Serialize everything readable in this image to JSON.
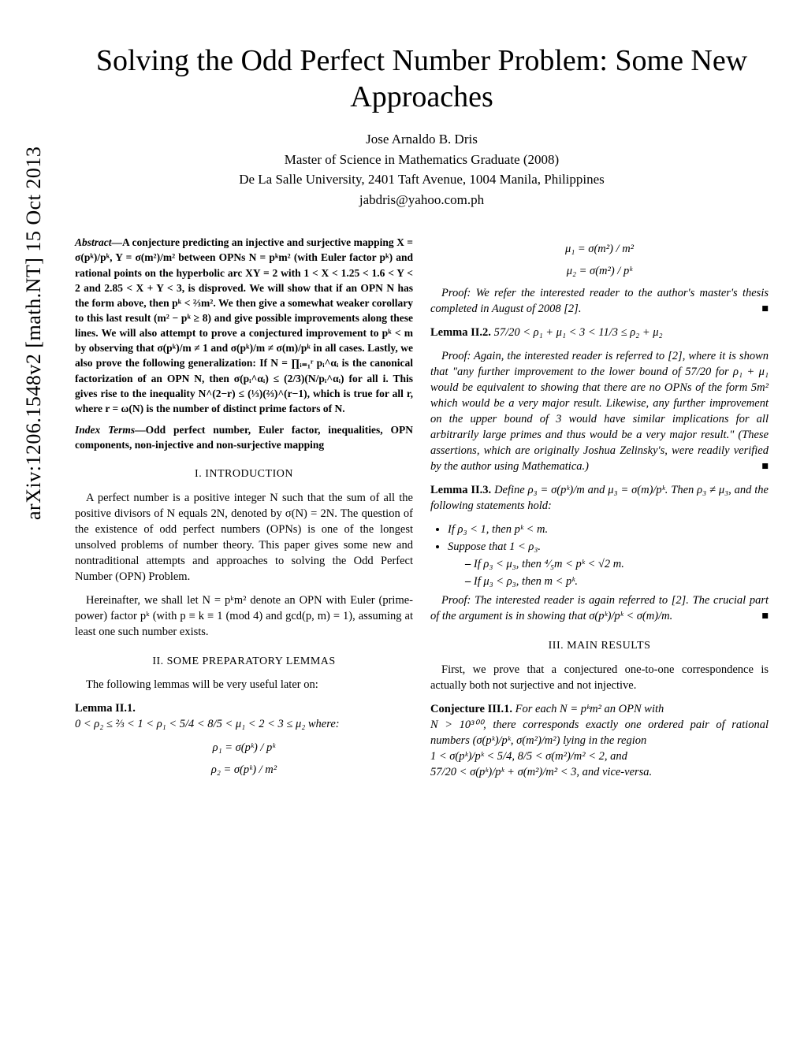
{
  "arxiv_id": "arXiv:1206.1548v2  [math.NT]  15 Oct 2013",
  "title": "Solving the Odd Perfect Number Problem: Some New Approaches",
  "author": "Jose Arnaldo B. Dris",
  "affil1": "Master of Science in Mathematics Graduate (2008)",
  "affil2": "De La Salle University, 2401 Taft Avenue, 1004 Manila, Philippines",
  "email": "jabdris@yahoo.com.ph",
  "abstract_label": "Abstract",
  "abstract_body": "—A conjecture predicting an injective and surjective mapping X = σ(pᵏ)/pᵏ, Y = σ(m²)/m² between OPNs N = pᵏm² (with Euler factor pᵏ) and rational points on the hyperbolic arc XY = 2 with 1 < X < 1.25 < 1.6 < Y < 2 and 2.85 < X + Y < 3, is disproved. We will show that if an OPN N has the form above, then pᵏ < ⅔m². We then give a somewhat weaker corollary to this last result (m² − pᵏ ≥ 8) and give possible improvements along these lines. We will also attempt to prove a conjectured improvement to pᵏ < m by observing that σ(pᵏ)/m ≠ 1 and σ(pᵏ)/m ≠ σ(m)/pᵏ in all cases. Lastly, we also prove the following generalization: If N = ∏ᵢ₌₁ʳ pᵢ^αᵢ is the canonical factorization of an OPN N, then σ(pᵢ^αᵢ) ≤ (2/3)(N/pᵢ^αᵢ) for all i. This gives rise to the inequality N^(2−r) ≤ (⅓)(⅔)^(r−1), which is true for all r, where r = ω(N) is the number of distinct prime factors of N.",
  "index_label": "Index Terms",
  "index_body": "—Odd perfect number, Euler factor, inequalities, OPN components, non-injective and non-surjective mapping",
  "sec1_head": "I.  INTRODUCTION",
  "sec1_p1": "A perfect number is a positive integer N such that the sum of all the positive divisors of N equals 2N, denoted by σ(N) = 2N. The question of the existence of odd perfect numbers (OPNs) is one of the longest unsolved problems of number theory. This paper gives some new and nontraditional attempts and approaches to solving the Odd Perfect Number (OPN) Problem.",
  "sec1_p2": "Hereinafter, we shall let N = pᵏm² denote an OPN with Euler (prime-power) factor pᵏ (with p ≡ k ≡ 1 (mod 4) and gcd(p, m) = 1), assuming at least one such number exists.",
  "sec2_head": "II.  SOME PREPARATORY LEMMAS",
  "sec2_p1": "The following lemmas will be very useful later on:",
  "lemma21_head": "Lemma II.1.",
  "lemma21_body": "0 < ρ₂ ≤ ⅔ < 1 < ρ₁ < 5/4 < 8/5 < μ₁ < 2 < 3 ≤ μ₂ where:",
  "rho1_eq": "ρ₁ = σ(pᵏ) / pᵏ",
  "rho2_eq": "ρ₂ = σ(pᵏ) / m²",
  "mu1_eq": "μ₁ = σ(m²) / m²",
  "mu2_eq": "μ₂ = σ(m²) / pᵏ",
  "proof21": "Proof:  We refer the interested reader to the author's master's thesis completed in August of 2008 [2].",
  "lemma22_head": "Lemma II.2.",
  "lemma22_body": " 57/20 < ρ₁ + μ₁ < 3 < 11/3 ≤ ρ₂ + μ₂",
  "proof22": "Proof:  Again, the interested reader is referred to [2], where it is shown that \"any further improvement to the lower bound of 57/20 for ρ₁ + μ₁ would be equivalent to showing that there are no OPNs of the form 5m² which would be a very major result. Likewise, any further improvement on the upper bound of 3 would have similar implications for all arbitrarily large primes and thus would be a very major result.\" (These assertions, which are originally Joshua Zelinsky's, were readily verified by the author using Mathematica.)",
  "lemma23_head": "Lemma II.3.",
  "lemma23_body": " Define ρ₃ = σ(pᵏ)/m and μ₃ = σ(m)/pᵏ. Then ρ₃ ≠ μ₃, and the following statements hold:",
  "lemma23_b1": "If ρ₃ < 1, then pᵏ < m.",
  "lemma23_b2": "Suppose that 1 < ρ₃.",
  "lemma23_s1": "If ρ₃ < μ₃, then ⁴⁄₅m < pᵏ < √2 m.",
  "lemma23_s2": "If μ₃ < ρ₃, then m < pᵏ.",
  "proof23": "Proof:  The interested reader is again referred to [2]. The crucial part of the argument is in showing that σ(pᵏ)/pᵏ < σ(m)/m.",
  "sec3_head": "III.  MAIN RESULTS",
  "sec3_p1": "First, we prove that a conjectured one-to-one correspondence is actually both not surjective and not injective.",
  "conj31_head": "Conjecture III.1.",
  "conj31_l1": " For each N = pᵏm² an OPN with",
  "conj31_l2": "N > 10³⁰⁰, there corresponds exactly one ordered pair of rational numbers (σ(pᵏ)/pᵏ, σ(m²)/m²) lying in the region",
  "conj31_l3": "1 < σ(pᵏ)/pᵏ < 5/4,  8/5 < σ(m²)/m² < 2, and",
  "conj31_l4": "57/20 < σ(pᵏ)/pᵏ + σ(m²)/m² < 3, and vice-versa.",
  "qed": "■"
}
